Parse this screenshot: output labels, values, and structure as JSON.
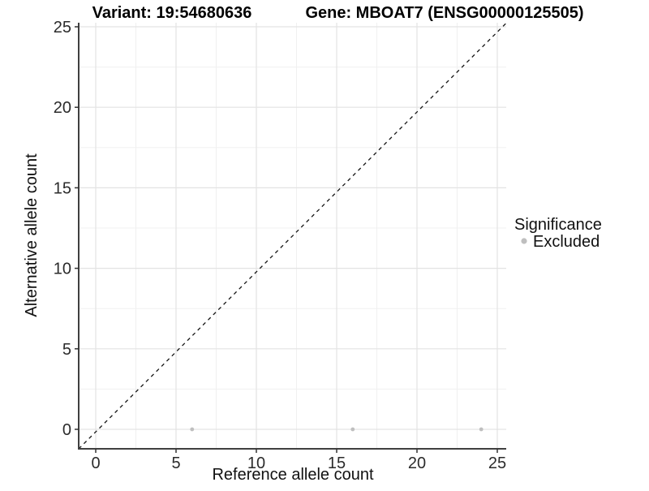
{
  "chart_data": {
    "type": "scatter",
    "title_left": "Variant: 19:54680636",
    "title_right": "Gene: MBOAT7 (ENSG00000125505)",
    "xlabel": "Reference allele count",
    "ylabel": "Alternative allele count",
    "x_ticks": [
      0,
      5,
      10,
      15,
      20,
      25
    ],
    "y_ticks": [
      0,
      5,
      10,
      15,
      20,
      25
    ],
    "xlim": [
      -1.1,
      25.6
    ],
    "ylim": [
      -1.2,
      25.3
    ],
    "grid": {
      "major_step": 5,
      "minor_step": 2.5,
      "major_color": "#e3e3e3",
      "minor_color": "#f0f0f0"
    },
    "reference_line": {
      "style": "dashed",
      "slope": 1,
      "intercept": 0,
      "color": "#151515"
    },
    "series": [
      {
        "name": "Excluded",
        "color": "#bfbfbf",
        "points": [
          [
            6,
            0
          ],
          [
            16,
            0
          ],
          [
            24,
            0
          ]
        ]
      }
    ],
    "legend": {
      "title": "Significance",
      "position": "right",
      "entries": [
        {
          "label": "Excluded",
          "color": "#bfbfbf"
        }
      ]
    }
  }
}
